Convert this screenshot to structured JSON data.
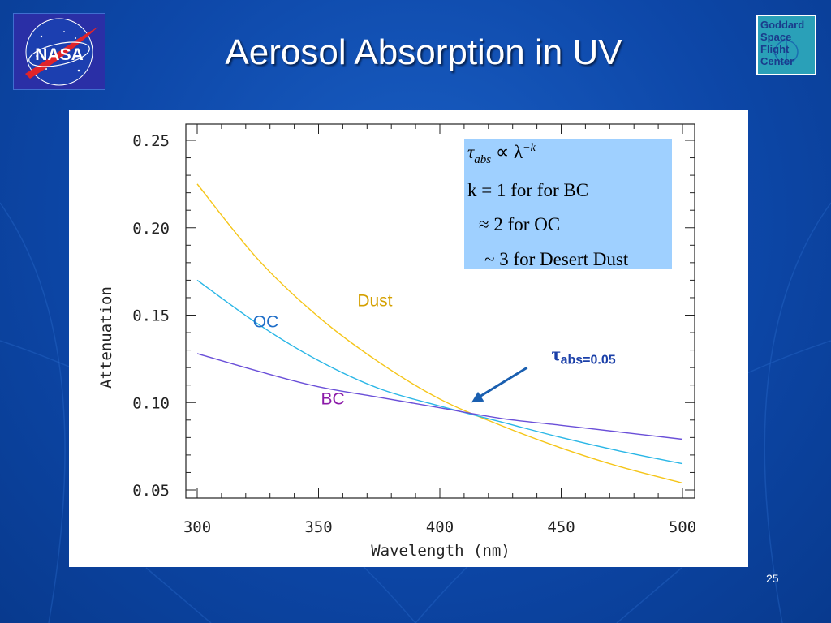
{
  "slide": {
    "title": "Aerosol Absorption in UV",
    "page_number": "25"
  },
  "logos": {
    "nasa_text": "NASA",
    "gsfc_lines": [
      "Goddard",
      "Space",
      "Flight",
      "Center"
    ]
  },
  "chart_data": {
    "type": "line",
    "title": "",
    "xlabel": "Wavelength (nm)",
    "ylabel": "Attenuation",
    "xlim": [
      300,
      500
    ],
    "ylim": [
      0.05,
      0.25
    ],
    "x_ticks": [
      300,
      350,
      400,
      450,
      500
    ],
    "y_ticks": [
      0.05,
      0.1,
      0.15,
      0.2,
      0.25
    ],
    "y_tick_labels": [
      "0.05",
      "0.10",
      "0.15",
      "0.20",
      "0.25"
    ],
    "grid": false,
    "series": [
      {
        "name": "Dust",
        "color": "#f5c518",
        "x": [
          300,
          325,
          350,
          375,
          400,
          425,
          450,
          475,
          500
        ],
        "y": [
          0.225,
          0.182,
          0.149,
          0.123,
          0.102,
          0.087,
          0.074,
          0.063,
          0.054
        ]
      },
      {
        "name": "OC",
        "color": "#29b6e6",
        "x": [
          300,
          325,
          350,
          375,
          400,
          425,
          450,
          475,
          500
        ],
        "y": [
          0.17,
          0.145,
          0.124,
          0.108,
          0.098,
          0.089,
          0.08,
          0.072,
          0.065
        ]
      },
      {
        "name": "BC",
        "color": "#6a4fd8",
        "x": [
          300,
          325,
          350,
          375,
          400,
          425,
          450,
          475,
          500
        ],
        "y": [
          0.128,
          0.118,
          0.109,
          0.103,
          0.097,
          0.091,
          0.087,
          0.083,
          0.079
        ]
      }
    ],
    "annotations": [
      {
        "text": "Dust",
        "color": "#d4a000",
        "x": 366,
        "y": 0.155
      },
      {
        "text": "OC",
        "color": "#1f6ec8",
        "x": 323,
        "y": 0.143
      },
      {
        "text": "BC",
        "color": "#8b1aa8",
        "x": 351,
        "y": 0.099
      },
      {
        "text_symbol": "τ",
        "text_sub": "abs=0.05",
        "color": "#1a3fa8",
        "x": 446,
        "y": 0.124,
        "arrow_from": [
          436,
          0.12
        ],
        "arrow_to": [
          413,
          0.1
        ]
      }
    ],
    "formula_box": {
      "background": "#9fd0ff",
      "lines": [
        {
          "tau": "τ",
          "sub": "abs",
          "rest": " ∝ λ",
          "sup": "−k"
        },
        {
          "text": "k = 1 for for BC"
        },
        {
          "text": "≈ 2 for OC"
        },
        {
          "text": "~ 3 for Desert Dust"
        }
      ]
    }
  }
}
